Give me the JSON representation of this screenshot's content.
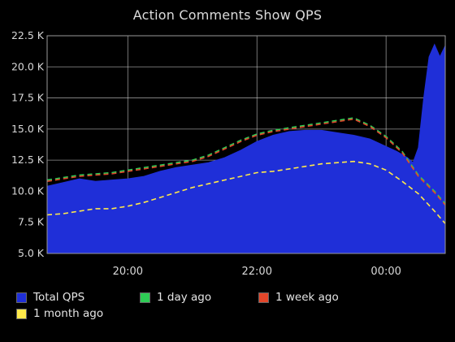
{
  "chart_data": {
    "type": "area",
    "title": "Action Comments Show QPS",
    "xlabel": "",
    "ylabel": "",
    "ylim": [
      5000,
      22500
    ],
    "y_ticks": [
      5000,
      7500,
      10000,
      12500,
      15000,
      17500,
      20000,
      22500
    ],
    "y_tick_labels": [
      "5.0 K",
      "7.5 K",
      "10.0 K",
      "12.5 K",
      "15.0 K",
      "17.5 K",
      "20.0 K",
      "22.5 K"
    ],
    "xlim": [
      "18:45",
      "00:55"
    ],
    "x_ticks": [
      "20:00",
      "22:00",
      "00:00"
    ],
    "grid": true,
    "legend_position": "bottom",
    "series": [
      {
        "name": "Total QPS",
        "color": "#1f2fd8",
        "style": "area",
        "x": [
          "18:45",
          "19:00",
          "19:15",
          "19:30",
          "19:45",
          "20:00",
          "20:15",
          "20:30",
          "20:45",
          "21:00",
          "21:15",
          "21:30",
          "21:45",
          "22:00",
          "22:15",
          "22:30",
          "22:45",
          "23:00",
          "23:15",
          "23:30",
          "23:45",
          "00:00",
          "00:10",
          "00:20",
          "00:25",
          "00:30",
          "00:35",
          "00:40",
          "00:45",
          "00:50",
          "00:55"
        ],
        "values": [
          10400,
          10700,
          11000,
          10800,
          10900,
          11000,
          11200,
          11600,
          11900,
          12100,
          12300,
          12700,
          13300,
          14000,
          14500,
          14800,
          14900,
          14900,
          14700,
          14500,
          14200,
          13600,
          13200,
          12700,
          12300,
          13500,
          17500,
          20800,
          21800,
          20800,
          21700
        ]
      },
      {
        "name": "1 day ago",
        "color": "#2ecc55",
        "style": "dashed",
        "x": [
          "18:45",
          "19:00",
          "19:15",
          "19:30",
          "19:45",
          "20:00",
          "20:15",
          "20:30",
          "20:45",
          "21:00",
          "21:15",
          "21:30",
          "21:45",
          "22:00",
          "22:15",
          "22:30",
          "22:45",
          "23:00",
          "23:15",
          "23:30",
          "23:45",
          "00:00",
          "00:15",
          "00:30",
          "00:45",
          "00:55"
        ],
        "values": [
          10900,
          11100,
          11300,
          11400,
          11500,
          11700,
          11900,
          12100,
          12300,
          12500,
          12900,
          13500,
          14100,
          14600,
          14900,
          15100,
          15300,
          15500,
          15700,
          15900,
          15300,
          14400,
          13200,
          11300,
          10000,
          9000
        ]
      },
      {
        "name": "1 week ago",
        "color": "#e2462a",
        "style": "dashed",
        "x": [
          "18:45",
          "19:00",
          "19:15",
          "19:30",
          "19:45",
          "20:00",
          "20:15",
          "20:30",
          "20:45",
          "21:00",
          "21:15",
          "21:30",
          "21:45",
          "22:00",
          "22:15",
          "22:30",
          "22:45",
          "23:00",
          "23:15",
          "23:30",
          "23:45",
          "00:00",
          "00:15",
          "00:30",
          "00:45",
          "00:55"
        ],
        "values": [
          10800,
          11000,
          11200,
          11300,
          11400,
          11600,
          11800,
          12000,
          12200,
          12400,
          12800,
          13400,
          14000,
          14500,
          14800,
          15000,
          15200,
          15400,
          15600,
          15800,
          15200,
          14300,
          13100,
          11200,
          9900,
          8900
        ]
      },
      {
        "name": "1 month ago",
        "color": "#ffe94a",
        "style": "dashed",
        "x": [
          "18:45",
          "19:00",
          "19:15",
          "19:30",
          "19:45",
          "20:00",
          "20:15",
          "20:30",
          "20:45",
          "21:00",
          "21:15",
          "21:30",
          "21:45",
          "22:00",
          "22:15",
          "22:30",
          "22:45",
          "23:00",
          "23:15",
          "23:30",
          "23:45",
          "00:00",
          "00:15",
          "00:30",
          "00:45",
          "00:55"
        ],
        "values": [
          8100,
          8200,
          8400,
          8600,
          8600,
          8800,
          9100,
          9500,
          9900,
          10300,
          10600,
          10900,
          11200,
          11500,
          11600,
          11800,
          12000,
          12200,
          12300,
          12400,
          12200,
          11700,
          10800,
          9800,
          8400,
          7400
        ]
      }
    ]
  },
  "legend": {
    "items": [
      {
        "label": "Total QPS",
        "color": "#1f2fd8"
      },
      {
        "label": "1 day ago",
        "color": "#2ecc55"
      },
      {
        "label": "1 week ago",
        "color": "#e2462a"
      },
      {
        "label": "1 month ago",
        "color": "#ffe94a"
      }
    ]
  }
}
